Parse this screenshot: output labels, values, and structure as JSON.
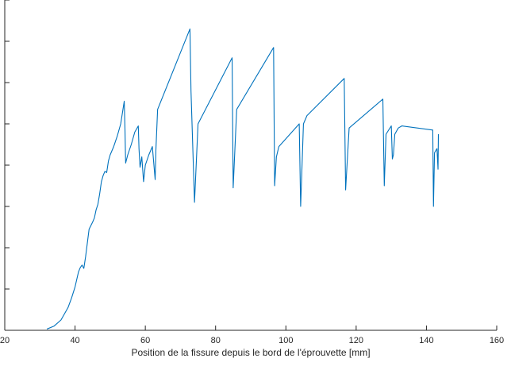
{
  "chart_data": {
    "type": "line",
    "xlabel": "Position de la fissure depuis le bord de l'éprouvette [mm]",
    "xlim": [
      20,
      160
    ],
    "ylim": [
      0,
      8
    ],
    "xticks": [
      20,
      40,
      60,
      80,
      100,
      120,
      140,
      160
    ],
    "yticks": [
      0,
      1,
      2,
      3,
      4,
      5,
      6,
      7,
      8
    ],
    "line_color": "#0072BD",
    "series": [
      {
        "x": [
          32.0,
          34.0,
          36.0,
          38.0,
          39.0,
          40.0,
          41.0,
          41.5,
          42.0,
          42.5,
          43.0,
          44.0,
          45.0,
          45.5,
          46.0,
          46.5,
          47.0,
          47.5,
          48.0,
          48.5,
          49.0,
          49.5,
          50.0,
          51.0,
          52.0,
          53.0,
          54.0,
          54.2,
          54.4,
          55.0,
          56.0,
          57.0,
          58.0,
          58.2,
          58.5,
          59.0,
          59.5,
          60.0,
          61.0,
          62.0,
          62.8,
          63.0,
          63.5,
          72.7,
          73.0,
          74.0,
          75.0,
          84.7,
          85.0,
          86.0,
          96.5,
          96.8,
          97.3,
          98.0,
          103.8,
          104.2,
          105.0,
          106.0,
          116.6,
          117.0,
          118.0,
          127.6,
          128.0,
          128.5,
          130.0,
          130.3,
          130.6,
          131.0,
          132.0,
          133.0,
          141.8,
          142.0,
          142.3,
          143.0,
          143.3,
          143.4
        ],
        "y": [
          0.03,
          0.1,
          0.25,
          0.55,
          0.78,
          1.05,
          1.42,
          1.52,
          1.58,
          1.5,
          1.78,
          2.45,
          2.62,
          2.72,
          2.92,
          3.05,
          3.3,
          3.6,
          3.75,
          3.85,
          3.82,
          4.1,
          4.25,
          4.45,
          4.7,
          5.0,
          5.55,
          4.9,
          4.05,
          4.25,
          4.5,
          4.8,
          4.95,
          4.4,
          3.95,
          4.2,
          3.6,
          4.0,
          4.25,
          4.45,
          3.65,
          4.35,
          5.35,
          7.3,
          5.8,
          3.1,
          5.0,
          6.6,
          3.45,
          5.35,
          6.85,
          3.5,
          4.2,
          4.45,
          5.0,
          3.0,
          5.0,
          5.2,
          6.1,
          3.4,
          4.9,
          5.6,
          3.5,
          4.75,
          4.95,
          4.15,
          4.25,
          4.75,
          4.9,
          4.95,
          4.85,
          3.0,
          4.3,
          4.4,
          3.9,
          4.75
        ]
      }
    ]
  }
}
